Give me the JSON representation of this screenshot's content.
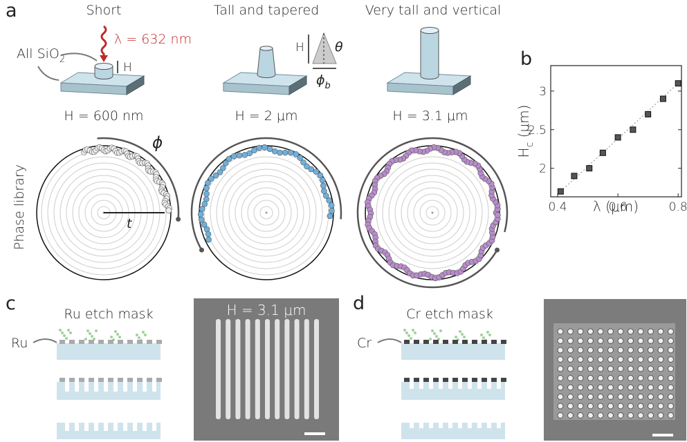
{
  "panel_a": {
    "label": "a",
    "columns": [
      {
        "title": "Short",
        "height": "H = 600 nm"
      },
      {
        "title": "Tall and tapered",
        "height": "H = 2 μm"
      },
      {
        "title": "Very tall and vertical",
        "height": "H = 3.1 μm"
      }
    ],
    "wavelength": "λ = 632 nm",
    "material": {
      "text": "All SiO",
      "sub": "2"
    },
    "h_symbol": "H",
    "theta": "θ",
    "phi_b": {
      "text": "ϕ",
      "sub": "b"
    },
    "phi": "ϕ",
    "t": "t",
    "y_label": "Phase library"
  },
  "chart_data": {
    "type": "scatter",
    "panel": "b",
    "x": [
      0.41,
      0.455,
      0.505,
      0.55,
      0.6,
      0.65,
      0.7,
      0.75,
      0.8
    ],
    "values": [
      1.7,
      1.9,
      2.0,
      2.2,
      2.4,
      2.5,
      2.7,
      2.9,
      3.1
    ],
    "xlim": [
      0.377,
      0.811
    ],
    "ylim": [
      1.63,
      3.33
    ],
    "xticks": [
      0.4,
      0.6,
      0.8
    ],
    "yticks": [
      2,
      2.5,
      3
    ],
    "x_label": "λ (μm)",
    "y_label": {
      "text": "H",
      "sub": "c",
      "unit": " (μm)"
    },
    "color": "#555555"
  },
  "panel_c": {
    "label": "c",
    "title": "Ru etch mask",
    "material": "Ru",
    "sem_label": "H = 3.1 μm"
  },
  "panel_d": {
    "label": "d",
    "title": "Cr etch mask",
    "material": "Cr"
  }
}
